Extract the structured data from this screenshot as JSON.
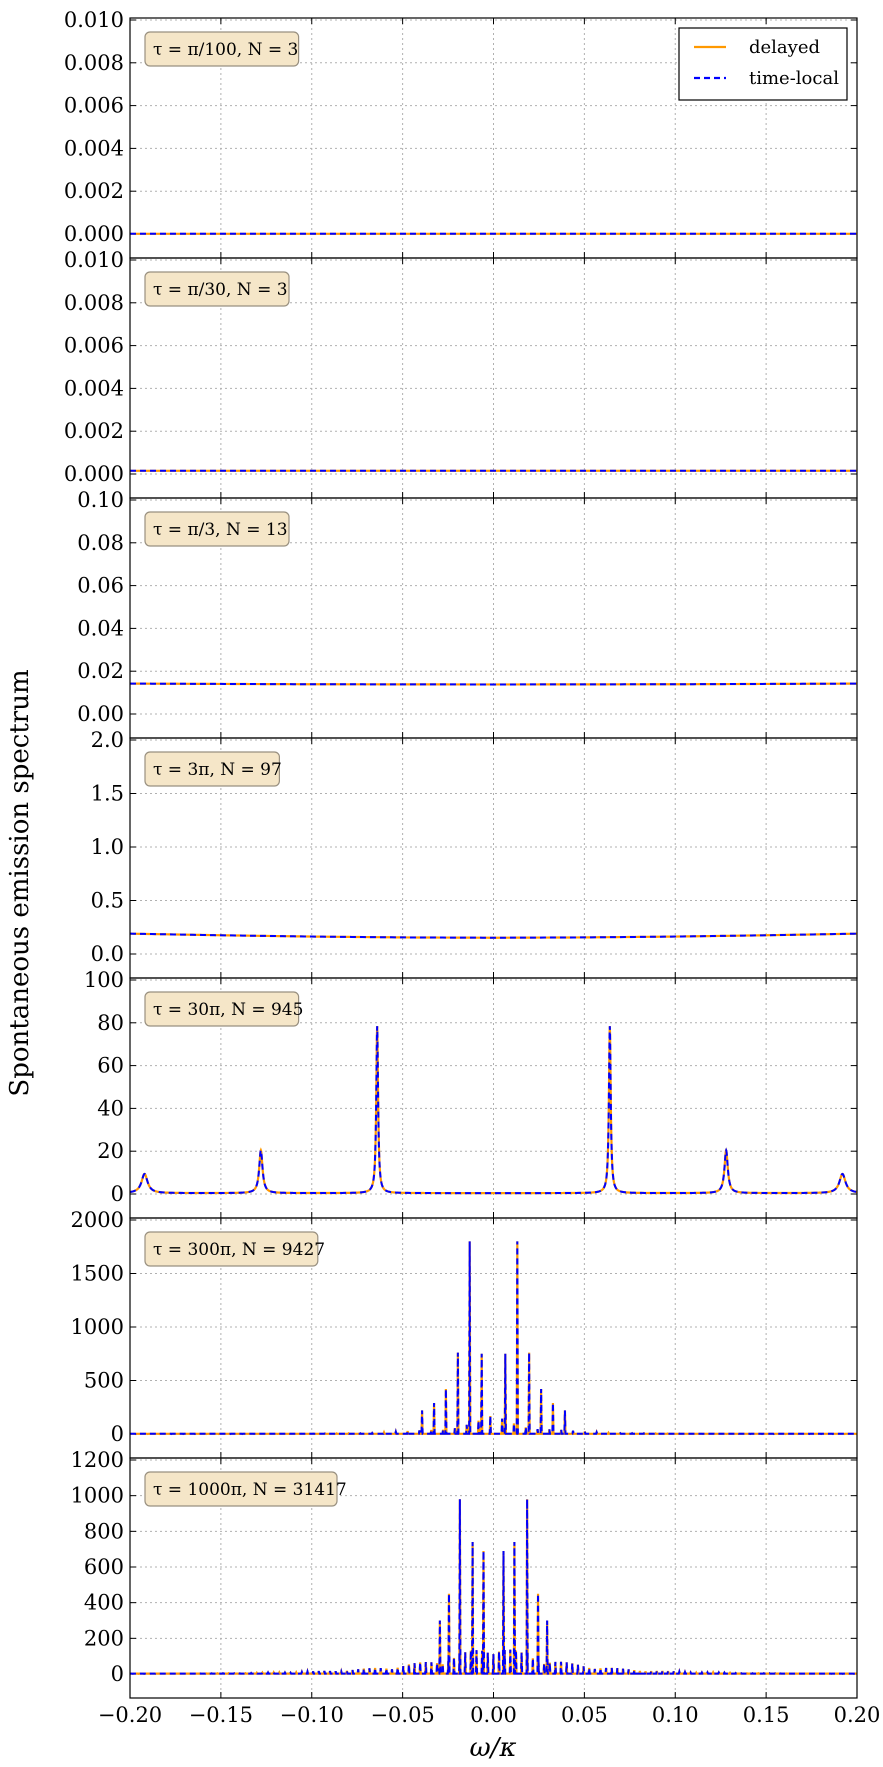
{
  "figure": {
    "ylabel": "Spontaneous emission spectrum",
    "xlabel": "ω/κ",
    "legend": {
      "placement": "top-right",
      "entries": [
        {
          "name": "delayed",
          "color": "#ff9900",
          "style": "solid"
        },
        {
          "name": "time-local",
          "color": "#0000ff",
          "style": "dashed"
        }
      ]
    },
    "colors": {
      "delayed": "#ff9900",
      "time_local": "#0000ff",
      "label_box_fill": "#f5e6c8",
      "label_box_stroke": "#999080"
    }
  },
  "chart_data": [
    {
      "type": "line",
      "label": "τ = π/100, N = 3",
      "xlim": [
        -0.2,
        0.2
      ],
      "ylim": [
        0,
        0.01
      ],
      "yticks": [
        "0.000",
        "0.002",
        "0.004",
        "0.006",
        "0.008",
        "0.010"
      ],
      "ytick_values": [
        0,
        0.002,
        0.004,
        0.006,
        0.008,
        0.01
      ],
      "grid": true,
      "series": [
        {
          "name": "delayed",
          "x": [
            -0.2,
            0.2
          ],
          "values": [
            1e-05,
            1e-05
          ]
        },
        {
          "name": "time-local",
          "x": [
            -0.2,
            0.2
          ],
          "values": [
            1e-05,
            1e-05
          ]
        }
      ]
    },
    {
      "type": "line",
      "label": "τ = π/30, N = 3",
      "xlim": [
        -0.2,
        0.2
      ],
      "ylim": [
        0,
        0.01
      ],
      "yticks": [
        "0.000",
        "0.002",
        "0.004",
        "0.006",
        "0.008",
        "0.010"
      ],
      "ytick_values": [
        0,
        0.002,
        0.004,
        0.006,
        0.008,
        0.01
      ],
      "grid": true,
      "series": [
        {
          "name": "delayed",
          "x": [
            -0.2,
            0.2
          ],
          "values": [
            0.00015,
            0.00015
          ]
        },
        {
          "name": "time-local",
          "x": [
            -0.2,
            0.2
          ],
          "values": [
            0.00015,
            0.00015
          ]
        }
      ]
    },
    {
      "type": "line",
      "label": "τ = π/3, N = 13",
      "xlim": [
        -0.2,
        0.2
      ],
      "ylim": [
        0,
        0.1
      ],
      "yticks": [
        "0.00",
        "0.02",
        "0.04",
        "0.06",
        "0.08",
        "0.10"
      ],
      "ytick_values": [
        0,
        0.02,
        0.04,
        0.06,
        0.08,
        0.1
      ],
      "grid": true,
      "series": [
        {
          "name": "delayed",
          "x": [
            -0.2,
            -0.1,
            0.0,
            0.1,
            0.2
          ],
          "values": [
            0.0142,
            0.0139,
            0.0138,
            0.0139,
            0.0142
          ]
        },
        {
          "name": "time-local",
          "x": [
            -0.2,
            -0.1,
            0.0,
            0.1,
            0.2
          ],
          "values": [
            0.0142,
            0.0139,
            0.0138,
            0.0139,
            0.0142
          ]
        }
      ]
    },
    {
      "type": "line",
      "label": "τ = 3π, N = 97",
      "xlim": [
        -0.2,
        0.2
      ],
      "ylim": [
        0,
        2.0
      ],
      "yticks": [
        "0.0",
        "0.5",
        "1.0",
        "1.5",
        "2.0"
      ],
      "ytick_values": [
        0,
        0.5,
        1.0,
        1.5,
        2.0
      ],
      "grid": true,
      "series": [
        {
          "name": "delayed",
          "x": [
            -0.2,
            -0.15,
            -0.1,
            -0.05,
            0.0,
            0.05,
            0.1,
            0.15,
            0.2
          ],
          "values": [
            0.19,
            0.175,
            0.163,
            0.155,
            0.152,
            0.155,
            0.163,
            0.175,
            0.19
          ]
        },
        {
          "name": "time-local",
          "x": [
            -0.2,
            -0.15,
            -0.1,
            -0.05,
            0.0,
            0.05,
            0.1,
            0.15,
            0.2
          ],
          "values": [
            0.19,
            0.175,
            0.163,
            0.155,
            0.152,
            0.155,
            0.163,
            0.175,
            0.19
          ]
        }
      ]
    },
    {
      "type": "line",
      "label": "τ = 30π, N = 945",
      "xlim": [
        -0.2,
        0.2
      ],
      "ylim": [
        0,
        100
      ],
      "yticks": [
        "0",
        "20",
        "40",
        "60",
        "80",
        "100"
      ],
      "ytick_values": [
        0,
        20,
        40,
        60,
        80,
        100
      ],
      "grid": true,
      "peaks": [
        {
          "x": -0.192,
          "height": 9,
          "width": 0.002
        },
        {
          "x": -0.128,
          "height": 20,
          "width": 0.0011
        },
        {
          "x": -0.064,
          "height": 78,
          "width": 0.0006
        },
        {
          "x": 0.064,
          "height": 78,
          "width": 0.0006
        },
        {
          "x": 0.128,
          "height": 20,
          "width": 0.0011
        },
        {
          "x": 0.192,
          "height": 9,
          "width": 0.002
        }
      ],
      "baseline": 0.4
    },
    {
      "type": "line",
      "label": "τ = 300π, N = 9427",
      "xlim": [
        -0.2,
        0.2
      ],
      "ylim": [
        0,
        2000
      ],
      "yticks": [
        "0",
        "500",
        "1000",
        "1500",
        "2000"
      ],
      "ytick_values": [
        0,
        500,
        1000,
        1500,
        2000
      ],
      "grid": true,
      "spike_spacing": 0.0065,
      "spike_profile": {
        "center_peak": 1800,
        "decay": 0.013
      },
      "spikes": [
        {
          "x": -0.0131,
          "height": 1800
        },
        {
          "x": 0.0131,
          "height": 1800
        },
        {
          "x": -0.0196,
          "height": 760
        },
        {
          "x": 0.0196,
          "height": 760
        },
        {
          "x": -0.0065,
          "height": 750
        },
        {
          "x": 0.0065,
          "height": 750
        },
        {
          "x": -0.0262,
          "height": 420
        },
        {
          "x": 0.0262,
          "height": 420
        },
        {
          "x": -0.0327,
          "height": 290
        },
        {
          "x": 0.0327,
          "height": 290
        },
        {
          "x": -0.0393,
          "height": 220
        },
        {
          "x": 0.0393,
          "height": 220
        }
      ]
    },
    {
      "type": "line",
      "label": "τ = 1000π, N = 31417",
      "xlim": [
        -0.2,
        0.2
      ],
      "ylim": [
        0,
        1200
      ],
      "yticks": [
        "0",
        "200",
        "400",
        "600",
        "800",
        "1000",
        "1200"
      ],
      "ytick_values": [
        0,
        200,
        400,
        600,
        800,
        1000,
        1200
      ],
      "grid": true,
      "spikes": [
        {
          "x": -0.0185,
          "height": 980
        },
        {
          "x": 0.0185,
          "height": 980
        },
        {
          "x": -0.0115,
          "height": 740
        },
        {
          "x": 0.0115,
          "height": 740
        },
        {
          "x": -0.0055,
          "height": 690
        },
        {
          "x": 0.0055,
          "height": 690
        },
        {
          "x": -0.0245,
          "height": 450
        },
        {
          "x": 0.0245,
          "height": 450
        },
        {
          "x": -0.0295,
          "height": 300
        },
        {
          "x": 0.0295,
          "height": 300
        }
      ]
    }
  ],
  "xaxis": {
    "ticks": [
      "−0.20",
      "−0.15",
      "−0.10",
      "−0.05",
      "0.00",
      "0.05",
      "0.10",
      "0.15",
      "0.20"
    ],
    "tick_values": [
      -0.2,
      -0.15,
      -0.1,
      -0.05,
      0.0,
      0.05,
      0.1,
      0.15,
      0.2
    ]
  }
}
